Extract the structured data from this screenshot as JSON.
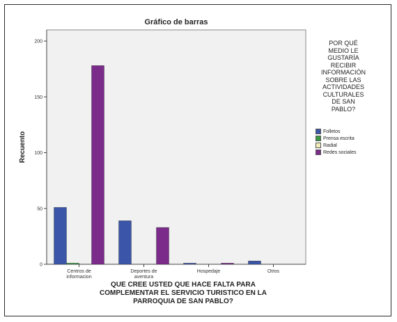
{
  "chart_data": {
    "type": "bar",
    "title": "Gráfico de barras",
    "ylabel": "Recuento",
    "xlabel": "QUE CREE USTED QUE HACE FALTA PARA COMPLEMENTAR EL SERVICIO TURISTICO EN LA PARROQUIA DE SAN PABLO?",
    "xlabel_lines": [
      "QUE CREE USTED QUE HACE FALTA PARA",
      "COMPLEMENTAR EL SERVICIO TURISTICO EN LA",
      "PARROQUIA DE SAN PABLO?"
    ],
    "categories": [
      [
        "Centros de",
        "informacion"
      ],
      [
        "Deportes de",
        "aventura"
      ],
      [
        "Hospedaje"
      ],
      [
        "Otros"
      ]
    ],
    "ylim": [
      0,
      210
    ],
    "yticks": [
      0,
      50,
      100,
      150,
      200
    ],
    "legend_title": "POR QUÉ\nMEDIO LE\nGUSTARÍA\nRECIBIR\nINFORMACIÓN\nSOBRE LAS\nACTIVIDADES\nCULTURALES\nDE SAN\nPABLO?",
    "legend_position": "right",
    "series": [
      {
        "name": "Folletos",
        "color": "#3b56a8",
        "values": [
          51,
          39,
          1,
          3
        ]
      },
      {
        "name": "Prensa escrita",
        "color": "#3a9a43",
        "values": [
          1,
          0,
          0,
          0
        ]
      },
      {
        "name": "Radial",
        "color": "#f2efb8",
        "values": [
          0,
          0,
          0,
          0
        ]
      },
      {
        "name": "Redes sociales",
        "color": "#7b2b8a",
        "values": [
          178,
          33,
          1,
          0
        ]
      }
    ],
    "plot_background": "#f1f1f1",
    "grid": false
  }
}
